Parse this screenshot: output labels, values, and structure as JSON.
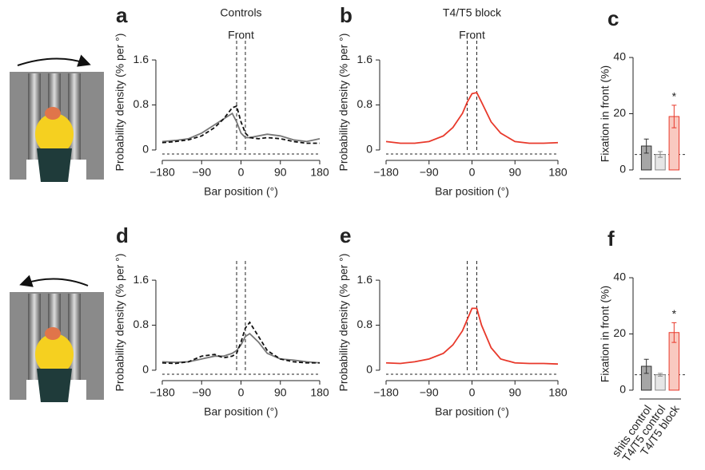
{
  "chart_data": [
    {
      "type": "line",
      "panel": "a",
      "title": "Controls",
      "annotation": "Front",
      "xlabel": "Bar position (°)",
      "ylabel": "Probability density (% per °)",
      "x": [
        -180,
        -150,
        -120,
        -90,
        -60,
        -40,
        -20,
        -10,
        0,
        10,
        20,
        40,
        60,
        90,
        120,
        150,
        180
      ],
      "series": [
        {
          "color": "#777777",
          "dashed": false,
          "values": [
            0.15,
            0.17,
            0.2,
            0.3,
            0.45,
            0.55,
            0.65,
            0.5,
            0.3,
            0.22,
            0.22,
            0.25,
            0.28,
            0.25,
            0.18,
            0.15,
            0.2
          ]
        },
        {
          "color": "#111111",
          "dashed": true,
          "values": [
            0.13,
            0.15,
            0.18,
            0.25,
            0.4,
            0.55,
            0.75,
            0.78,
            0.5,
            0.3,
            0.22,
            0.2,
            0.22,
            0.2,
            0.15,
            0.12,
            0.12
          ]
        }
      ],
      "front_lines": [
        -10,
        10
      ],
      "xlim": [
        -180,
        180
      ],
      "xticks": [
        {
          "value": -180,
          "label": "−180"
        },
        {
          "value": -90,
          "label": "−90"
        },
        0,
        90,
        180
      ],
      "ylim": [
        -0.1,
        1.8
      ],
      "yticks": [
        0,
        0.8,
        1.6
      ]
    },
    {
      "type": "line",
      "panel": "b",
      "title": "T4/T5 block",
      "annotation": "Front",
      "xlabel": "Bar position (°)",
      "ylabel": "Probability density (% per °)",
      "x": [
        -180,
        -150,
        -120,
        -90,
        -60,
        -40,
        -20,
        -10,
        0,
        10,
        20,
        40,
        60,
        90,
        120,
        150,
        180
      ],
      "series": [
        {
          "color": "#e8392b",
          "dashed": false,
          "values": [
            0.15,
            0.12,
            0.12,
            0.15,
            0.25,
            0.4,
            0.65,
            0.85,
            1.0,
            1.02,
            0.85,
            0.5,
            0.3,
            0.15,
            0.12,
            0.12,
            0.13
          ]
        }
      ],
      "front_lines": [
        -10,
        10
      ],
      "xlim": [
        -180,
        180
      ],
      "xticks": [
        {
          "value": -180,
          "label": "−180"
        },
        {
          "value": -90,
          "label": "−90"
        },
        0,
        90,
        180
      ],
      "ylim": [
        -0.1,
        1.8
      ],
      "yticks": [
        0,
        0.8,
        1.6
      ]
    },
    {
      "type": "bar",
      "panel": "c",
      "ylabel": "Fixation in front (%)",
      "categories": [
        null,
        null,
        null
      ],
      "values": [
        8.5,
        5.5,
        19
      ],
      "errors": [
        2.5,
        1,
        4
      ],
      "colors": [
        "#a6a6a6",
        "#e6e6e6",
        "#f9c9c0"
      ],
      "edge_colors": [
        "#333333",
        "#888888",
        "#e8392b"
      ],
      "reference": 5.5,
      "significance": "*",
      "ylim": [
        -2,
        42
      ],
      "yticks": [
        0,
        20,
        40
      ]
    },
    {
      "type": "line",
      "panel": "d",
      "xlabel": "Bar position (°)",
      "ylabel": "Probability density (% per °)",
      "x": [
        -180,
        -150,
        -120,
        -90,
        -60,
        -40,
        -20,
        -10,
        0,
        10,
        20,
        40,
        60,
        90,
        120,
        150,
        180
      ],
      "series": [
        {
          "color": "#777777",
          "dashed": false,
          "values": [
            0.15,
            0.14,
            0.15,
            0.2,
            0.25,
            0.25,
            0.3,
            0.35,
            0.45,
            0.6,
            0.65,
            0.5,
            0.3,
            0.2,
            0.18,
            0.15,
            0.13
          ]
        },
        {
          "color": "#111111",
          "dashed": true,
          "values": [
            0.13,
            0.12,
            0.15,
            0.25,
            0.28,
            0.22,
            0.25,
            0.3,
            0.5,
            0.75,
            0.85,
            0.6,
            0.35,
            0.2,
            0.15,
            0.13,
            0.13
          ]
        }
      ],
      "front_lines": [
        -10,
        10
      ],
      "xlim": [
        -180,
        180
      ],
      "xticks": [
        {
          "value": -180,
          "label": "−180"
        },
        {
          "value": -90,
          "label": "−90"
        },
        0,
        90,
        180
      ],
      "ylim": [
        -0.1,
        1.8
      ],
      "yticks": [
        0,
        0.8,
        1.6
      ]
    },
    {
      "type": "line",
      "panel": "e",
      "xlabel": "Bar position (°)",
      "ylabel": "Probability density (% per °)",
      "x": [
        -180,
        -150,
        -120,
        -90,
        -60,
        -40,
        -20,
        -10,
        0,
        10,
        20,
        40,
        60,
        90,
        120,
        150,
        180
      ],
      "series": [
        {
          "color": "#e8392b",
          "dashed": false,
          "values": [
            0.13,
            0.12,
            0.15,
            0.2,
            0.3,
            0.45,
            0.7,
            0.9,
            1.1,
            1.1,
            0.8,
            0.4,
            0.2,
            0.13,
            0.12,
            0.12,
            0.11
          ]
        }
      ],
      "front_lines": [
        -10,
        10
      ],
      "xlim": [
        -180,
        180
      ],
      "xticks": [
        {
          "value": -180,
          "label": "−180"
        },
        {
          "value": -90,
          "label": "−90"
        },
        0,
        90,
        180
      ],
      "ylim": [
        -0.1,
        1.8
      ],
      "yticks": [
        0,
        0.8,
        1.6
      ]
    },
    {
      "type": "bar",
      "panel": "f",
      "ylabel": "Fixation in front (%)",
      "categories": [
        "shits control",
        "T4/T5 control",
        "T4/T5 block"
      ],
      "values": [
        8.5,
        5.5,
        20.5
      ],
      "errors": [
        2.5,
        0.5,
        3.5
      ],
      "colors": [
        "#a6a6a6",
        "#e6e6e6",
        "#f9c9c0"
      ],
      "edge_colors": [
        "#333333",
        "#888888",
        "#e8392b"
      ],
      "reference": 5.5,
      "significance": "*",
      "ylim": [
        -2,
        42
      ],
      "yticks": [
        0,
        20,
        40
      ]
    }
  ]
}
